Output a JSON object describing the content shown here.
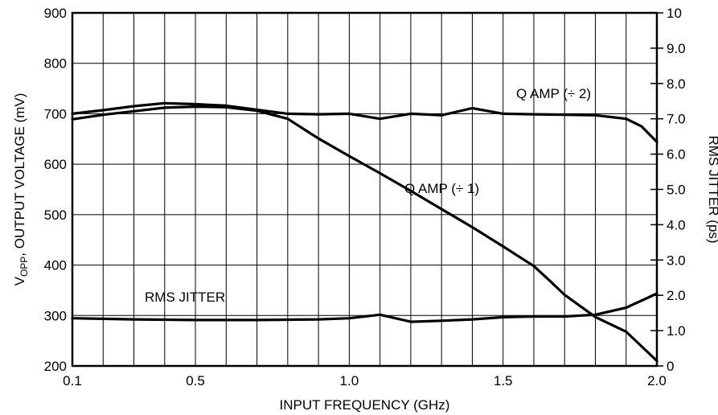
{
  "chart_data": {
    "type": "line",
    "xlabel": "INPUT FREQUENCY (GHz)",
    "ylabel_left": {
      "main": "V",
      "sub": "OPP",
      "rest": ", OUTPUT VOLTAGE (mV)"
    },
    "ylabel_right": "RMS JITTER (ps)",
    "xlim": [
      0.1,
      2.0
    ],
    "ylim_left": [
      200,
      900
    ],
    "ylim_right": [
      0,
      10
    ],
    "grid": true,
    "x_gridlines": [
      0.1,
      0.2,
      0.3,
      0.4,
      0.5,
      0.6,
      0.7,
      0.8,
      0.9,
      1.0,
      1.1,
      1.2,
      1.3,
      1.4,
      1.5,
      1.6,
      1.7,
      1.8,
      1.9,
      2.0
    ],
    "x_ticks": [
      {
        "v": 0.1,
        "label": "0.1"
      },
      {
        "v": 0.5,
        "label": "0.5"
      },
      {
        "v": 1.0,
        "label": "1.0"
      },
      {
        "v": 1.5,
        "label": "1.5"
      },
      {
        "v": 2.0,
        "label": "2.0"
      }
    ],
    "y_left_ticks": [
      {
        "v": 200,
        "label": "200"
      },
      {
        "v": 300,
        "label": "300"
      },
      {
        "v": 400,
        "label": "400"
      },
      {
        "v": 500,
        "label": "500"
      },
      {
        "v": 600,
        "label": "600"
      },
      {
        "v": 700,
        "label": "700"
      },
      {
        "v": 800,
        "label": "800"
      },
      {
        "v": 900,
        "label": "900"
      }
    ],
    "y_right_ticks": [
      {
        "v": 0,
        "label": "0"
      },
      {
        "v": 1,
        "label": "1.0"
      },
      {
        "v": 2,
        "label": "2.0"
      },
      {
        "v": 3,
        "label": "3.0"
      },
      {
        "v": 4,
        "label": "4.0"
      },
      {
        "v": 5,
        "label": "5.0"
      },
      {
        "v": 6,
        "label": "6.0"
      },
      {
        "v": 7,
        "label": "7.0"
      },
      {
        "v": 8,
        "label": "8.0"
      },
      {
        "v": 9,
        "label": "9.0"
      },
      {
        "v": 10,
        "label": "10"
      }
    ],
    "series": [
      {
        "name": "Q AMP (÷ 1)",
        "axis": "left",
        "x": [
          0.1,
          0.2,
          0.3,
          0.4,
          0.5,
          0.6,
          0.7,
          0.8,
          0.9,
          1.0,
          1.1,
          1.2,
          1.3,
          1.4,
          1.5,
          1.6,
          1.65,
          1.7,
          1.8,
          1.9,
          2.0
        ],
        "y": [
          689,
          698,
          705,
          712,
          714,
          713,
          706,
          690,
          651,
          616,
          582,
          547,
          511,
          475,
          437,
          398,
          370,
          341,
          297,
          268,
          210
        ]
      },
      {
        "name": "Q AMP (÷ 2)",
        "axis": "left",
        "x": [
          0.1,
          0.2,
          0.3,
          0.4,
          0.5,
          0.6,
          0.7,
          0.8,
          0.9,
          1.0,
          1.1,
          1.2,
          1.3,
          1.4,
          1.5,
          1.6,
          1.7,
          1.8,
          1.9,
          1.95,
          2.0
        ],
        "y": [
          700,
          707,
          715,
          721,
          719,
          716,
          708,
          700,
          699,
          700,
          690,
          700,
          697,
          711,
          700,
          699,
          698,
          697,
          690,
          675,
          644
        ]
      },
      {
        "name": "RMS JITTER",
        "axis": "right",
        "x": [
          0.1,
          0.3,
          0.5,
          0.7,
          0.9,
          1.0,
          1.1,
          1.2,
          1.3,
          1.4,
          1.5,
          1.6,
          1.7,
          1.8,
          1.9,
          2.0
        ],
        "y": [
          1.35,
          1.32,
          1.3,
          1.3,
          1.32,
          1.35,
          1.45,
          1.25,
          1.28,
          1.32,
          1.38,
          1.4,
          1.4,
          1.45,
          1.65,
          2.05
        ]
      }
    ],
    "annotations": [
      {
        "text": "Q AMP (÷ 2)",
        "series": "Q AMP (÷ 2)"
      },
      {
        "text": "Q AMP (÷ 1)",
        "series": "Q AMP (÷ 1)"
      },
      {
        "text": "RMS JITTER",
        "series": "RMS JITTER"
      }
    ]
  }
}
